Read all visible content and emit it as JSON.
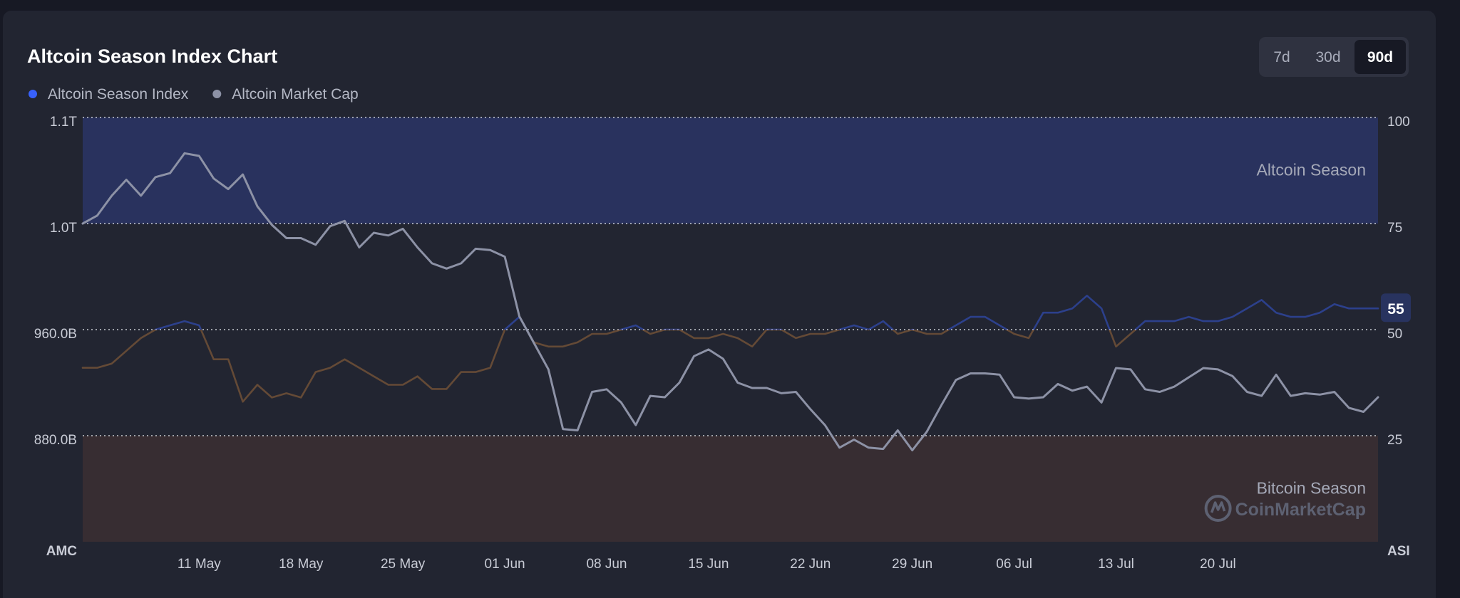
{
  "range_buttons": [
    "7d",
    "30d",
    "90d"
  ],
  "active_range": 2,
  "watermark": "CoinMarketCap",
  "chart_data": {
    "type": "line",
    "title": "Altcoin Season Index Chart",
    "categories": [
      null,
      null,
      null,
      null,
      null,
      null,
      null,
      null,
      "11 May",
      null,
      null,
      null,
      null,
      null,
      null,
      "18 May",
      null,
      null,
      null,
      null,
      null,
      null,
      "25 May",
      null,
      null,
      null,
      null,
      null,
      null,
      "01 Jun",
      null,
      null,
      null,
      null,
      null,
      null,
      "08 Jun",
      null,
      null,
      null,
      null,
      null,
      null,
      "15 Jun",
      null,
      null,
      null,
      null,
      null,
      null,
      "22 Jun",
      null,
      null,
      null,
      null,
      null,
      null,
      "29 Jun",
      null,
      null,
      null,
      null,
      null,
      null,
      "06 Jul",
      null,
      null,
      null,
      null,
      null,
      null,
      "13 Jul",
      null,
      null,
      null,
      null,
      null,
      null,
      "20 Jul",
      null,
      null,
      null,
      null,
      null,
      null,
      null,
      null,
      null,
      null,
      null
    ],
    "series": [
      {
        "name": "Altcoin Season Index",
        "color": "#3861fb",
        "axis": "y2",
        "values": [
          41,
          41,
          42,
          45,
          48,
          50,
          51,
          52,
          51,
          43,
          43,
          33,
          37,
          34,
          35,
          34,
          40,
          41,
          43,
          41,
          39,
          37,
          37,
          39,
          36,
          36,
          40,
          40,
          41,
          50,
          53,
          47,
          46,
          46,
          47,
          49,
          49,
          50,
          51,
          49,
          50,
          50,
          48,
          48,
          49,
          48,
          46,
          50,
          50,
          48,
          49,
          49,
          50,
          51,
          50,
          52,
          49,
          50,
          49,
          49,
          51,
          53,
          53,
          51,
          49,
          48,
          54,
          54,
          55,
          58,
          55,
          46,
          49,
          52,
          52,
          52,
          53,
          52,
          52,
          53,
          55,
          57,
          54,
          53,
          53,
          54,
          56,
          55,
          55,
          55
        ]
      },
      {
        "name": "Altcoin Market Cap",
        "color": "#8d92a6",
        "values": [
          1040,
          1046,
          1061,
          1073,
          1061,
          1075,
          1078,
          1093,
          1091,
          1074,
          1066,
          1077,
          1053,
          1039,
          1029,
          1029,
          1024,
          1038,
          1042,
          1022,
          1033,
          1031,
          1036,
          1022,
          1010,
          1006,
          1010,
          1021,
          1020,
          1015,
          970,
          950,
          930,
          885,
          884,
          913,
          915,
          905,
          888,
          910,
          909,
          920,
          940,
          945,
          938,
          920,
          916,
          916,
          912,
          913,
          900,
          888,
          871,
          877,
          871,
          870,
          884,
          869,
          883,
          903,
          922,
          927,
          927,
          926,
          909,
          908,
          909,
          919,
          914,
          917,
          905,
          931,
          930,
          915,
          913,
          917,
          924,
          931,
          930,
          925,
          913,
          910,
          926,
          910,
          912,
          911,
          913,
          901,
          898,
          909
        ]
      }
    ],
    "ylim": [
      800,
      1120
    ],
    "yticks": [
      {
        "value": 880,
        "label": "880.0B"
      },
      {
        "value": 960,
        "label": "960.0B"
      },
      {
        "value": 1040,
        "label": "1.0T"
      },
      {
        "value": 1120,
        "label": "1.1T"
      }
    ],
    "ylabel": "AMC",
    "y2lim": [
      0,
      100
    ],
    "y2ticks": [
      25,
      50,
      75,
      100
    ],
    "y2label": "ASI",
    "bands": [
      {
        "label": "Altcoin Season",
        "range": [
          75,
          100
        ],
        "color": "#2a3566"
      },
      {
        "label": "Bitcoin Season",
        "range": [
          0,
          25
        ],
        "color": "#3b2f33"
      }
    ],
    "grid": true,
    "legend": "top-left"
  }
}
